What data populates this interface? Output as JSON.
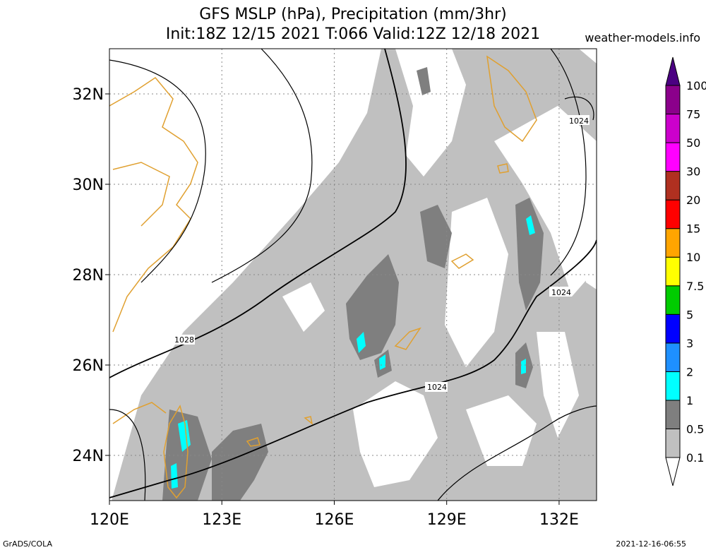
{
  "title": {
    "line1": "GFS MSLP (hPa), Precipitation (mm/3hr)",
    "line2": "Init:18Z 12/15 2021 T:066 Valid:12Z 12/18 2021"
  },
  "source": "weather-models.info",
  "footer": {
    "left": "GrADS/COLA",
    "right": "2021-12-16-06:55"
  },
  "map": {
    "lon_range": [
      120,
      133
    ],
    "lat_range": [
      23,
      33
    ],
    "lon_ticks": [
      {
        "value": 120,
        "label": "120E"
      },
      {
        "value": 123,
        "label": "123E"
      },
      {
        "value": 126,
        "label": "126E"
      },
      {
        "value": 129,
        "label": "129E"
      },
      {
        "value": 132,
        "label": "132E"
      }
    ],
    "lat_ticks": [
      {
        "value": 24,
        "label": "24N"
      },
      {
        "value": 26,
        "label": "26N"
      },
      {
        "value": 28,
        "label": "28N"
      },
      {
        "value": 30,
        "label": "30N"
      },
      {
        "value": 32,
        "label": "32N"
      }
    ],
    "coastline_color": "#e0a030",
    "isobar_labels": [
      "1028",
      "1024",
      "1024",
      "1024"
    ]
  },
  "colorbar": {
    "levels": [
      "0.1",
      "0.5",
      "1",
      "2",
      "3",
      "5",
      "7.5",
      "10",
      "15",
      "20",
      "30",
      "50",
      "75",
      "100"
    ],
    "colors": [
      "#c0c0c0",
      "#7f7f7f",
      "#00ffff",
      "#1e90ff",
      "#0000ff",
      "#00cc00",
      "#ffff00",
      "#ffa500",
      "#ff0000",
      "#b03020",
      "#ff00ff",
      "#cc00cc",
      "#8b008b",
      "#4b0082"
    ]
  }
}
